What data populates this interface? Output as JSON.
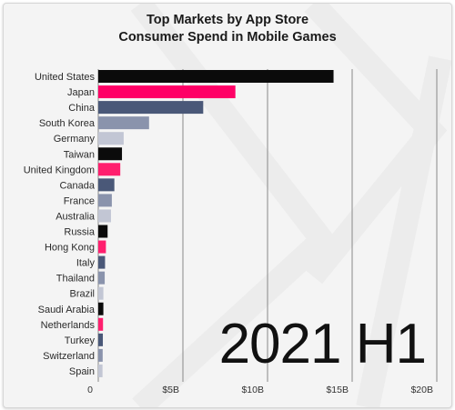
{
  "chart_data": {
    "type": "bar",
    "orientation": "horizontal",
    "title": [
      "Top Markets by App Store",
      "Consumer Spend in Mobile Games"
    ],
    "period": "2021 H1",
    "categories": [
      "United States",
      "Japan",
      "China",
      "South Korea",
      "Germany",
      "Taiwan",
      "United Kingdom",
      "Canada",
      "France",
      "Australia",
      "Russia",
      "Hong Kong",
      "Italy",
      "Thailand",
      "Brazil",
      "Saudi Arabia",
      "Netherlands",
      "Turkey",
      "Switzerland",
      "Spain"
    ],
    "values": [
      13.9,
      8.1,
      6.2,
      3.0,
      1.5,
      1.4,
      1.3,
      0.95,
      0.8,
      0.75,
      0.55,
      0.45,
      0.4,
      0.38,
      0.3,
      0.3,
      0.28,
      0.27,
      0.26,
      0.25
    ],
    "colors": [
      "#0b0b0b",
      "#ff0066",
      "#4a5878",
      "#8a93ac",
      "#c2c6d4",
      "#0b0b0b",
      "#ff1f6e",
      "#4a5878",
      "#8a93ac",
      "#c2c6d4",
      "#0b0b0b",
      "#ff1f6e",
      "#4a5878",
      "#8a93ac",
      "#c2c6d4",
      "#0b0b0b",
      "#ff1f6e",
      "#4a5878",
      "#8a93ac",
      "#c2c6d4"
    ],
    "xticks": [
      0,
      5,
      10,
      15,
      20
    ],
    "xtick_labels": [
      "0",
      "$5B",
      "$10B",
      "$15B",
      "$20B"
    ],
    "xlim": [
      0,
      20
    ],
    "grid": true
  }
}
